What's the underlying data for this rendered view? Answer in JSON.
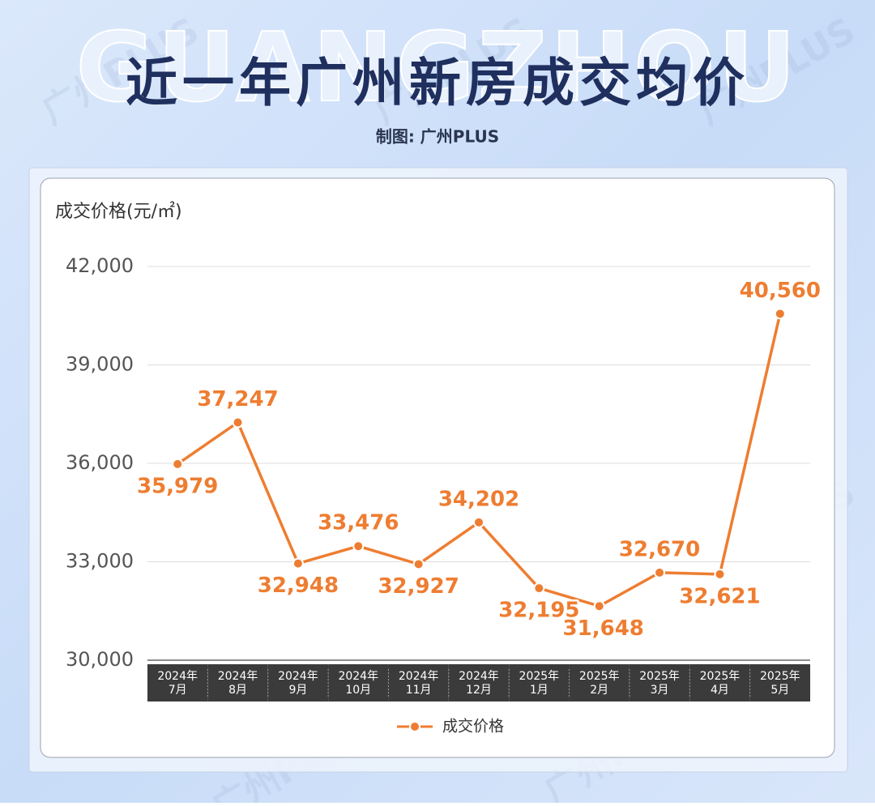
{
  "chart_data": {
    "type": "line",
    "background_text": "GUANGZHOU",
    "title": "近一年广州新房成交均价",
    "subtitle": "制图: 广州PLUS",
    "watermark": "广州PLUS",
    "y_label": "成交价格(元/㎡)",
    "categories": [
      [
        "2024年",
        "7月"
      ],
      [
        "2024年",
        "8月"
      ],
      [
        "2024年",
        "9月"
      ],
      [
        "2024年",
        "10月"
      ],
      [
        "2024年",
        "11月"
      ],
      [
        "2024年",
        "12月"
      ],
      [
        "2025年",
        "1月"
      ],
      [
        "2025年",
        "2月"
      ],
      [
        "2025年",
        "3月"
      ],
      [
        "2025年",
        "4月"
      ],
      [
        "2025年",
        "5月"
      ]
    ],
    "series": [
      {
        "name": "成交价格",
        "color": "#ee7d31",
        "values": [
          35979,
          37247,
          32948,
          33476,
          32927,
          34202,
          32195,
          31648,
          32670,
          32621,
          40560
        ],
        "value_labels": [
          "35,979",
          "37,247",
          "32,948",
          "33,476",
          "32,927",
          "34,202",
          "32,195",
          "31,648",
          "32,670",
          "32,621",
          "40,560"
        ]
      }
    ],
    "ylim": [
      30000,
      42000
    ],
    "yticks": [
      {
        "value": 30000,
        "label": "30,000"
      },
      {
        "value": 33000,
        "label": "33,000"
      },
      {
        "value": 36000,
        "label": "36,000"
      },
      {
        "value": 39000,
        "label": "39,000"
      },
      {
        "value": 42000,
        "label": "42,000"
      }
    ],
    "grid": true
  }
}
